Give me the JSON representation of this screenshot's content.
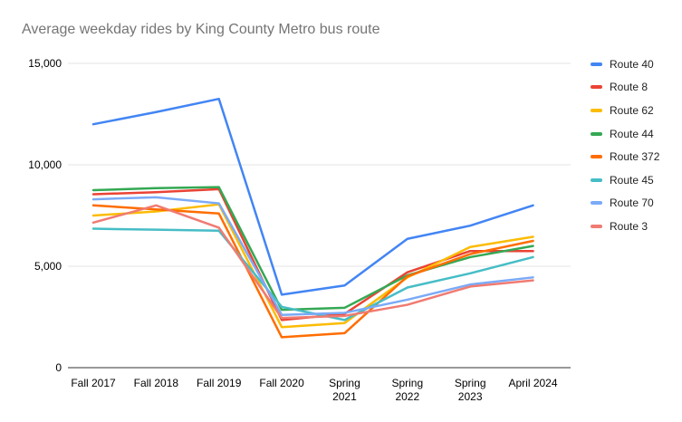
{
  "chart_data": {
    "type": "line",
    "title": "Average weekday rides by King County Metro bus route",
    "categories": [
      "Fall 2017",
      "Fall 2018",
      "Fall 2019",
      "Fall 2020",
      "Spring 2021",
      "Spring 2022",
      "Spring 2023",
      "April 2024"
    ],
    "category_label_lines": [
      [
        "Fall 2017"
      ],
      [
        "Fall 2018"
      ],
      [
        "Fall 2019"
      ],
      [
        "Fall 2020"
      ],
      [
        "Spring",
        "2021"
      ],
      [
        "Spring",
        "2022"
      ],
      [
        "Spring",
        "2023"
      ],
      [
        "April 2024"
      ]
    ],
    "series": [
      {
        "name": "Route 40",
        "color": "#4285F4",
        "values": [
          12000,
          12600,
          13250,
          3600,
          4050,
          6350,
          7000,
          8000
        ]
      },
      {
        "name": "Route 8",
        "color": "#EA4335",
        "values": [
          8550,
          8650,
          8800,
          2350,
          2650,
          4700,
          5750,
          5750
        ]
      },
      {
        "name": "Route 62",
        "color": "#FBBC04",
        "values": [
          7500,
          7700,
          8050,
          2000,
          2200,
          4450,
          5950,
          6450
        ]
      },
      {
        "name": "Route 44",
        "color": "#34A853",
        "values": [
          8750,
          8850,
          8900,
          2850,
          2950,
          4550,
          5450,
          6000
        ]
      },
      {
        "name": "Route 372",
        "color": "#FF6D01",
        "values": [
          8000,
          7800,
          7600,
          1500,
          1700,
          4500,
          5600,
          6250
        ]
      },
      {
        "name": "Route 45",
        "color": "#46BDC6",
        "values": [
          6850,
          6800,
          6750,
          3000,
          2350,
          3950,
          4650,
          5450
        ]
      },
      {
        "name": "Route 70",
        "color": "#7BAAF7",
        "values": [
          8300,
          8400,
          8100,
          2600,
          2700,
          3350,
          4100,
          4450
        ]
      },
      {
        "name": "Route 3",
        "color": "#F07B72",
        "values": [
          7150,
          8000,
          6900,
          2450,
          2550,
          3100,
          4000,
          4300
        ]
      }
    ],
    "xlabel": "",
    "ylabel": "",
    "ylim": [
      0,
      15000
    ],
    "yticks": [
      {
        "value": 0,
        "label": "0"
      },
      {
        "value": 5000,
        "label": "5,000"
      },
      {
        "value": 10000,
        "label": "10,000"
      },
      {
        "value": 15000,
        "label": "15,000"
      }
    ],
    "legend_position": "right",
    "grid": "horizontal"
  },
  "styles": {
    "title_color": "#757575",
    "axis_label_color": "#000000",
    "gridline_color": "#e6e6e6",
    "baseline_color": "#333333",
    "background": "#ffffff"
  }
}
